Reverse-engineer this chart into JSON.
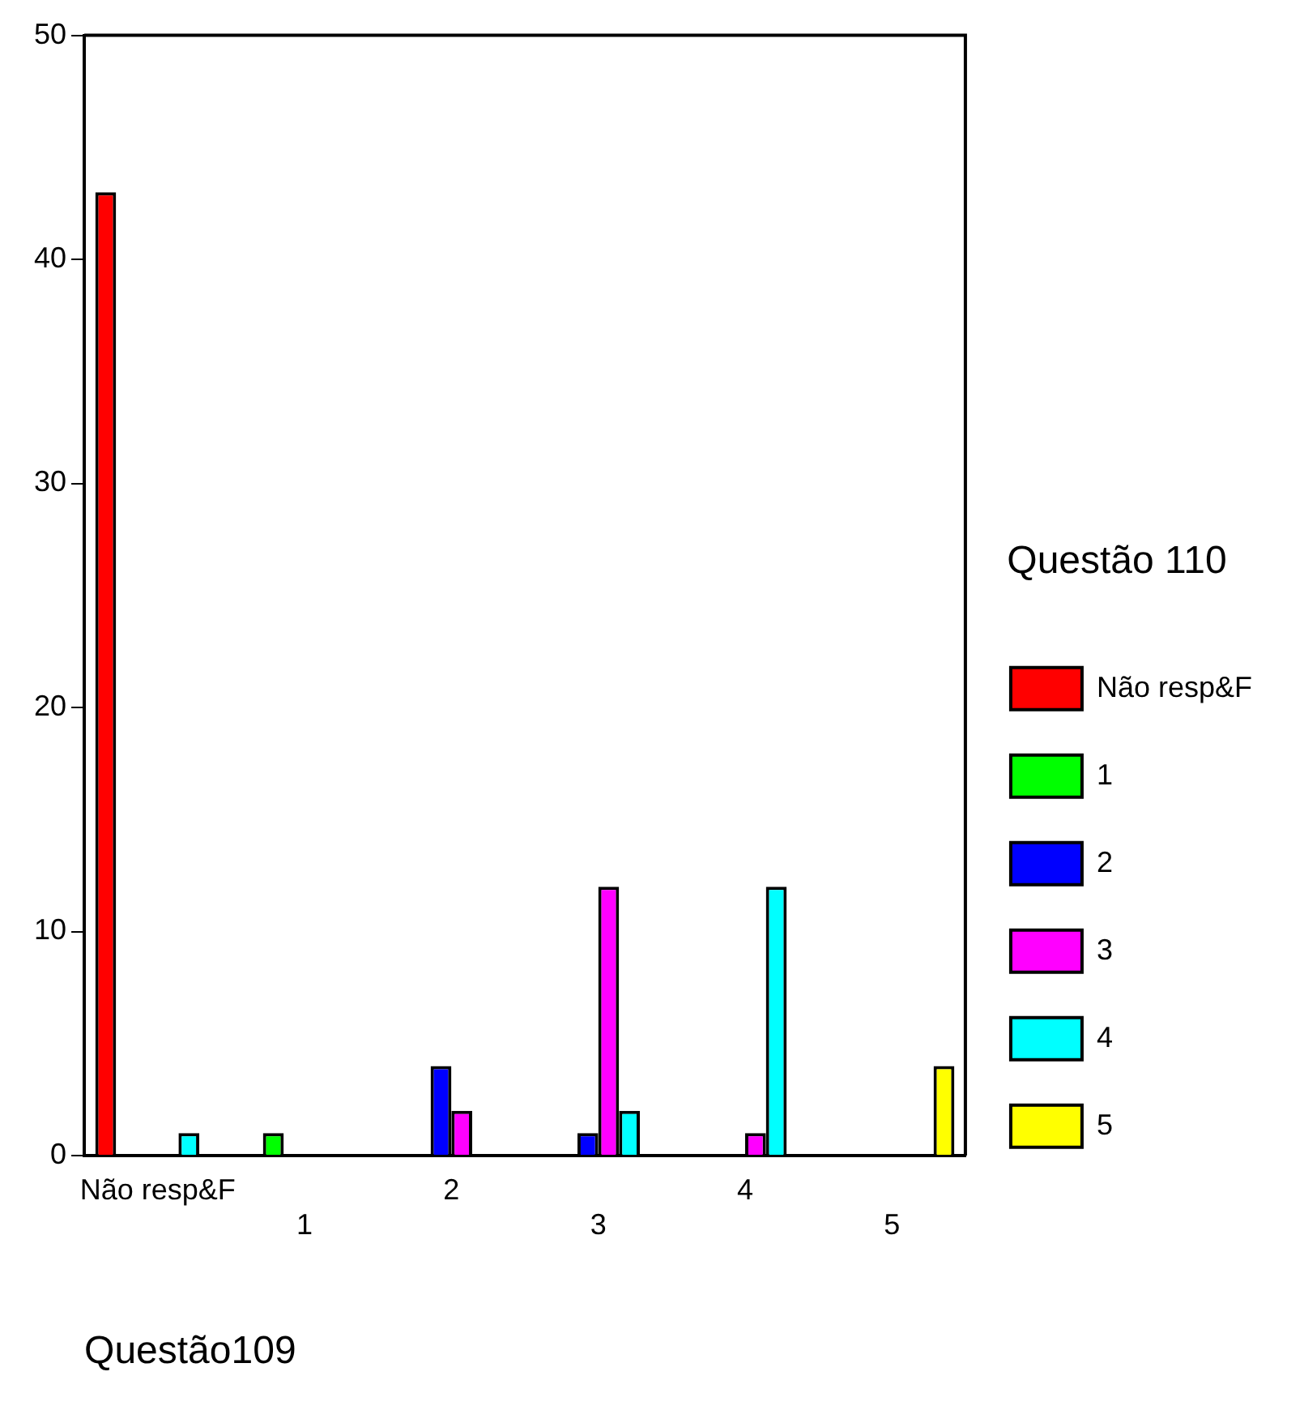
{
  "chart_data": {
    "type": "bar",
    "xlabel": "Questão109",
    "legend_title": "Questão 110",
    "categories": [
      "Não resp&F",
      "1",
      "2",
      "3",
      "4",
      "5"
    ],
    "series": [
      {
        "name": "Não resp&F",
        "color": "#ff0000",
        "values": [
          43,
          0,
          0,
          0,
          0,
          0
        ]
      },
      {
        "name": "1",
        "color": "#00ff00",
        "values": [
          0,
          1,
          0,
          0,
          0,
          0
        ]
      },
      {
        "name": "2",
        "color": "#0000ff",
        "values": [
          0,
          0,
          4,
          1,
          0,
          0
        ]
      },
      {
        "name": "3",
        "color": "#ff00ff",
        "values": [
          0,
          0,
          2,
          12,
          1,
          0
        ]
      },
      {
        "name": "4",
        "color": "#00ffff",
        "values": [
          1,
          0,
          0,
          2,
          12,
          0
        ]
      },
      {
        "name": "5",
        "color": "#ffff00",
        "values": [
          0,
          0,
          0,
          0,
          0,
          4
        ]
      }
    ],
    "ylim": [
      0,
      50
    ],
    "yticks": [
      0,
      10,
      20,
      30,
      40,
      50
    ],
    "grid": false,
    "legend": "right"
  }
}
